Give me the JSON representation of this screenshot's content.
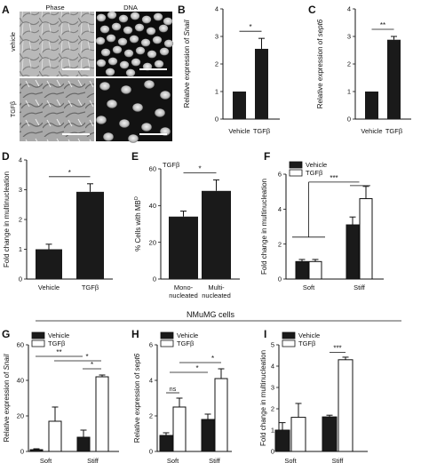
{
  "figure": {
    "section_label": "NMuMG cells",
    "panel_a": {
      "letter": "A",
      "col_labels": [
        "Phase",
        "DNA"
      ],
      "row_labels": [
        "vehicle",
        "TGFβ"
      ]
    }
  },
  "chart_data": [
    {
      "id": "B",
      "type": "bar",
      "letter": "B",
      "categories": [
        "Vehicle",
        "TGFβ"
      ],
      "values": [
        1,
        2.55
      ],
      "errors": [
        0,
        0.38
      ],
      "ylabel_prefix": "Relative expression of ",
      "ylabel_gene": "Snail",
      "ylim": [
        0,
        4
      ],
      "yticks": [
        0,
        1,
        2,
        3,
        4
      ],
      "sig": [
        {
          "from": 0,
          "to": 1,
          "label": "*"
        }
      ]
    },
    {
      "id": "C",
      "type": "bar",
      "letter": "C",
      "categories": [
        "Vehicle",
        "TGFβ"
      ],
      "values": [
        1,
        2.88
      ],
      "errors": [
        0,
        0.12
      ],
      "ylabel_prefix": "Relative expression of ",
      "ylabel_gene": "sept6",
      "ylim": [
        0,
        4
      ],
      "yticks": [
        0,
        1,
        2,
        3,
        4
      ],
      "sig": [
        {
          "from": 0,
          "to": 1,
          "label": "**"
        }
      ]
    },
    {
      "id": "D",
      "type": "bar",
      "letter": "D",
      "categories": [
        "Vehicle",
        "TGFβ"
      ],
      "values": [
        1,
        2.93
      ],
      "errors": [
        0.17,
        0.27
      ],
      "ylabel": "Fold change in multinucleation",
      "ylim": [
        0,
        4
      ],
      "yticks": [
        0,
        1,
        2,
        3,
        4
      ],
      "sig": [
        {
          "from": 0,
          "to": 1,
          "label": "*"
        }
      ]
    },
    {
      "id": "E",
      "type": "bar",
      "letter": "E",
      "inset_title": "TGFβ",
      "categories": [
        [
          "Mono-",
          "nucleated"
        ],
        [
          "Multi-",
          "nucleated"
        ]
      ],
      "values": [
        34,
        48
      ],
      "errors": [
        3,
        6
      ],
      "ylabel": "% Cells with MB",
      "ylabel_sup": "D",
      "ylim": [
        0,
        60
      ],
      "yticks": [
        0,
        20,
        40,
        60
      ],
      "sig": [
        {
          "from": 0,
          "to": 1,
          "label": "*"
        }
      ]
    },
    {
      "id": "F",
      "type": "grouped-bar",
      "letter": "F",
      "categories": [
        "Soft",
        "Stiff"
      ],
      "series": [
        {
          "name": "Vehicle",
          "values": [
            1,
            3.1
          ],
          "errors": [
            0.12,
            0.45
          ]
        },
        {
          "name": "TGFβ",
          "values": [
            1,
            4.6
          ],
          "errors": [
            0.12,
            0.7
          ]
        }
      ],
      "ylabel": "Fold change in multinucleation",
      "ylim": [
        0,
        6
      ],
      "yticks": [
        0,
        2,
        4,
        6
      ],
      "sig_label": "***"
    },
    {
      "id": "G",
      "type": "grouped-bar",
      "letter": "G",
      "categories": [
        "Soft",
        "Stiff"
      ],
      "series": [
        {
          "name": "Vehicle",
          "values": [
            1,
            8
          ],
          "errors": [
            0.5,
            4
          ]
        },
        {
          "name": "TGFβ",
          "values": [
            17,
            42
          ],
          "errors": [
            8,
            1
          ]
        }
      ],
      "ylabel_prefix": "Relative expression of ",
      "ylabel_gene": "Snail",
      "ylim": [
        0,
        60
      ],
      "yticks": [
        0,
        20,
        40,
        60
      ],
      "sig_labels": [
        "**",
        "*",
        "*"
      ]
    },
    {
      "id": "H",
      "type": "grouped-bar",
      "letter": "H",
      "categories": [
        "Soft",
        "Stiff"
      ],
      "series": [
        {
          "name": "Vehicle",
          "values": [
            0.9,
            1.8
          ],
          "errors": [
            0.15,
            0.3
          ]
        },
        {
          "name": "TGFβ",
          "values": [
            2.5,
            4.1
          ],
          "errors": [
            0.5,
            0.55
          ]
        }
      ],
      "ylabel_prefix": "Relative expression of ",
      "ylabel_gene": "sept6",
      "ylim": [
        0,
        6
      ],
      "yticks": [
        0,
        2,
        4,
        6
      ],
      "sig_labels": [
        "ns",
        "*",
        "*"
      ]
    },
    {
      "id": "I",
      "type": "grouped-bar",
      "letter": "I",
      "categories": [
        "Soft",
        "Stiff"
      ],
      "series": [
        {
          "name": "Vehicle",
          "values": [
            1,
            1.62
          ],
          "errors": [
            0.35,
            0.08
          ]
        },
        {
          "name": "TGFβ",
          "values": [
            1.6,
            4.3
          ],
          "errors": [
            0.65,
            0.12
          ]
        }
      ],
      "ylabel": "Fold change in multinucleation",
      "ylim": [
        0,
        5
      ],
      "yticks": [
        0,
        1,
        2,
        3,
        4,
        5
      ],
      "sig_label": "***"
    }
  ]
}
